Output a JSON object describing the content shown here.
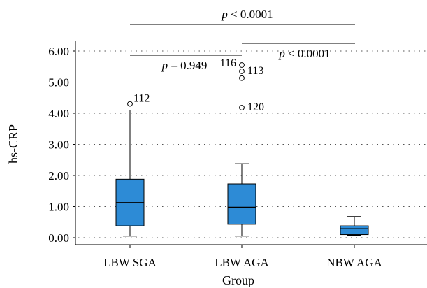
{
  "chart_data": {
    "type": "box",
    "xlabel": "Group",
    "ylabel": "hs-CRP",
    "ylim": [
      0,
      6.25
    ],
    "yticks": [
      "0.00",
      "1.00",
      "2.00",
      "3.00",
      "4.00",
      "5.00",
      "6.00"
    ],
    "grid": true,
    "categories": [
      "LBW SGA",
      "LBW AGA",
      "NBW AGA"
    ],
    "box_color": "#2d8bd6",
    "boxes": [
      {
        "category": "LBW SGA",
        "whisker_low": 0.05,
        "q1": 0.38,
        "median": 1.13,
        "q3": 1.88,
        "whisker_high": 4.1
      },
      {
        "category": "LBW AGA",
        "whisker_low": 0.05,
        "q1": 0.43,
        "median": 0.98,
        "q3": 1.73,
        "whisker_high": 2.38
      },
      {
        "category": "NBW AGA",
        "whisker_low": 0.08,
        "q1": 0.1,
        "median": 0.29,
        "q3": 0.38,
        "whisker_high": 0.68
      }
    ],
    "outliers": [
      {
        "category": "LBW SGA",
        "value": 4.3,
        "label": "112"
      },
      {
        "category": "LBW AGA",
        "value": 5.55,
        "label": "116"
      },
      {
        "category": "LBW AGA",
        "value": 5.35,
        "label": "113"
      },
      {
        "category": "LBW AGA",
        "value": 5.13,
        "label": ""
      },
      {
        "category": "LBW AGA",
        "value": 4.18,
        "label": "120"
      }
    ],
    "annotations": [
      {
        "p_symbol": "p",
        "text": "< 0.0001",
        "from": "LBW SGA",
        "to": "NBW AGA",
        "level": "top"
      },
      {
        "p_symbol": "p",
        "text": "= 0.949",
        "from": "LBW SGA",
        "to": "LBW AGA",
        "level": "low"
      },
      {
        "p_symbol": "p",
        "text": "< 0.0001",
        "from": "LBW AGA",
        "to": "NBW AGA",
        "level": "mid"
      }
    ]
  }
}
